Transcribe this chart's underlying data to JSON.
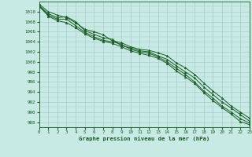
{
  "xlabel": "Graphe pression niveau de la mer (hPa)",
  "ylim": [
    987.0,
    1012.0
  ],
  "xlim": [
    0,
    23
  ],
  "yticks": [
    988,
    990,
    992,
    994,
    996,
    998,
    1000,
    1002,
    1004,
    1006,
    1008,
    1010
  ],
  "xticks": [
    0,
    1,
    2,
    3,
    4,
    5,
    6,
    7,
    8,
    9,
    10,
    11,
    12,
    13,
    14,
    15,
    16,
    17,
    18,
    19,
    20,
    21,
    22,
    23
  ],
  "background_color": "#c8eae4",
  "line_color": "#1a5c25",
  "grid_color": "#a8ccc8",
  "series": [
    [
      1011.5,
      1010.0,
      1009.3,
      1008.8,
      1007.8,
      1006.5,
      1006.0,
      1005.4,
      1004.2,
      1003.8,
      1003.0,
      1002.5,
      1002.3,
      1001.8,
      1001.2,
      999.8,
      998.8,
      997.5,
      995.8,
      994.2,
      992.8,
      991.2,
      990.0,
      988.8
    ],
    [
      1011.2,
      1009.6,
      1008.8,
      1009.0,
      1008.0,
      1006.2,
      1005.5,
      1004.8,
      1004.5,
      1003.2,
      1002.8,
      1002.2,
      1002.0,
      1001.2,
      1000.5,
      999.2,
      998.0,
      996.8,
      995.0,
      993.5,
      992.0,
      990.8,
      989.5,
      988.2
    ],
    [
      1011.0,
      1009.3,
      1008.5,
      1008.5,
      1007.2,
      1005.9,
      1005.0,
      1004.3,
      1004.0,
      1003.5,
      1002.5,
      1002.0,
      1001.7,
      1001.0,
      1000.0,
      998.7,
      997.5,
      996.0,
      994.2,
      992.8,
      991.2,
      990.0,
      988.7,
      987.8
    ],
    [
      1011.3,
      1009.1,
      1008.2,
      1007.8,
      1006.8,
      1005.6,
      1004.7,
      1004.1,
      1003.7,
      1003.0,
      1002.2,
      1001.7,
      1001.3,
      1000.7,
      999.7,
      998.2,
      997.0,
      995.7,
      993.9,
      992.3,
      990.9,
      989.6,
      988.1,
      987.5
    ]
  ]
}
